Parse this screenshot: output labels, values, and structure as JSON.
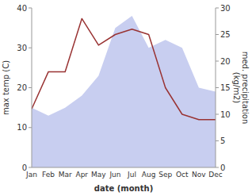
{
  "chart_data": {
    "type": "area",
    "xlabel": "date (month)",
    "ylabel": "max temp (C)",
    "y2label": "med. precipitation\n(kg/m2)",
    "categories": [
      "Jan",
      "Feb",
      "Mar",
      "Apr",
      "May",
      "Jun",
      "Jul",
      "Aug",
      "Sep",
      "Oct",
      "Nov",
      "Dec"
    ],
    "series": [
      {
        "type": "area",
        "color": "#c8cef0",
        "values": [
          15,
          13,
          15,
          18,
          23,
          35,
          38,
          30,
          32,
          30,
          20,
          19
        ]
      },
      {
        "type": "line",
        "color": "#993333",
        "axis": "y2",
        "values": [
          11,
          18,
          18,
          28,
          23,
          25,
          26,
          25,
          15,
          10,
          9,
          9
        ]
      }
    ],
    "ylim": [
      0,
      40
    ],
    "yticks": [
      0,
      10,
      20,
      30,
      40
    ],
    "y2lim": [
      0,
      30
    ],
    "y2ticks": [
      0,
      5,
      10,
      15,
      20,
      25,
      30
    ],
    "grid": false
  }
}
